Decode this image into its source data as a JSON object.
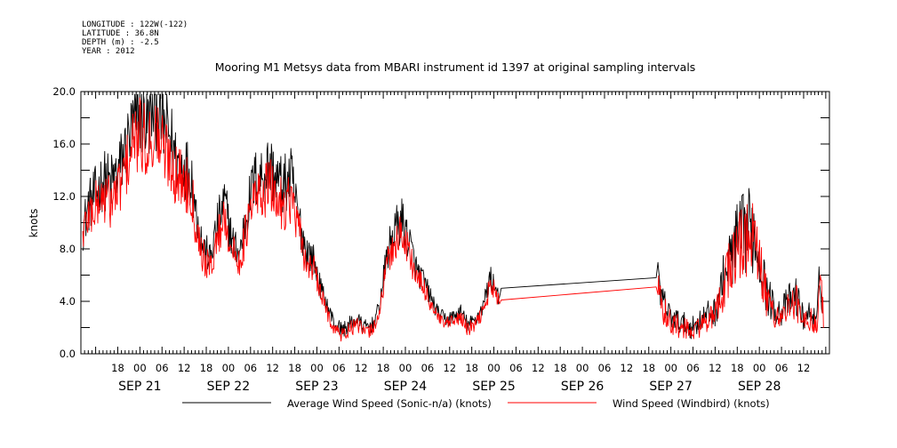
{
  "header": {
    "longitude": "LONGITUDE : 122W(-122)",
    "latitude": "LATITUDE : 36.8N",
    "depth": "DEPTH (m) : -2.5",
    "year": "YEAR : 2012"
  },
  "chart_data": {
    "type": "line",
    "title": "Mooring M1 Metsys data from MBARI instrument id 1397 at original sampling intervals",
    "xlabel": "",
    "ylabel": "knots",
    "ylim": [
      0,
      20
    ],
    "yticks": [
      "0.0",
      "4.0",
      "8.0",
      "12.0",
      "16.0",
      "20.0"
    ],
    "x_unit": "hours since SEP 21 00:00 (2012)",
    "xlim": [
      -16,
      187
    ],
    "hour_ticks": [
      {
        "h": -6,
        "label": "18"
      },
      {
        "h": 0,
        "label": "00"
      },
      {
        "h": 6,
        "label": "06"
      },
      {
        "h": 12,
        "label": "12"
      },
      {
        "h": 18,
        "label": "18"
      },
      {
        "h": 24,
        "label": "00"
      },
      {
        "h": 30,
        "label": "06"
      },
      {
        "h": 36,
        "label": "12"
      },
      {
        "h": 42,
        "label": "18"
      },
      {
        "h": 48,
        "label": "00"
      },
      {
        "h": 54,
        "label": "06"
      },
      {
        "h": 60,
        "label": "12"
      },
      {
        "h": 66,
        "label": "18"
      },
      {
        "h": 72,
        "label": "00"
      },
      {
        "h": 78,
        "label": "06"
      },
      {
        "h": 84,
        "label": "12"
      },
      {
        "h": 90,
        "label": "18"
      },
      {
        "h": 96,
        "label": "00"
      },
      {
        "h": 102,
        "label": "06"
      },
      {
        "h": 108,
        "label": "12"
      },
      {
        "h": 114,
        "label": "18"
      },
      {
        "h": 120,
        "label": "00"
      },
      {
        "h": 126,
        "label": "06"
      },
      {
        "h": 132,
        "label": "12"
      },
      {
        "h": 138,
        "label": "18"
      },
      {
        "h": 144,
        "label": "00"
      },
      {
        "h": 150,
        "label": "06"
      },
      {
        "h": 156,
        "label": "12"
      },
      {
        "h": 162,
        "label": "18"
      },
      {
        "h": 168,
        "label": "00"
      },
      {
        "h": 174,
        "label": "06"
      },
      {
        "h": 180,
        "label": "12"
      }
    ],
    "day_labels": [
      {
        "h": 0,
        "label": "SEP 21"
      },
      {
        "h": 24,
        "label": "SEP 22"
      },
      {
        "h": 48,
        "label": "SEP 23"
      },
      {
        "h": 72,
        "label": "SEP 24"
      },
      {
        "h": 96,
        "label": "SEP 25"
      },
      {
        "h": 120,
        "label": "SEP 26"
      },
      {
        "h": 144,
        "label": "SEP 27"
      },
      {
        "h": 168,
        "label": "SEP 28"
      }
    ],
    "series": [
      {
        "name": "Average Wind Speed (Sonic-n/a) (knots)",
        "color": "#000000",
        "points": [
          [
            -15.5,
            9.5
          ],
          [
            -14,
            11.2
          ],
          [
            -12,
            12.2
          ],
          [
            -10,
            13.3
          ],
          [
            -8,
            13.0
          ],
          [
            -6,
            13.8
          ],
          [
            -4,
            15.5
          ],
          [
            -2,
            17.2
          ],
          [
            0,
            18.3
          ],
          [
            2,
            17.5
          ],
          [
            4,
            19.2
          ],
          [
            6,
            17.4
          ],
          [
            8,
            16.8
          ],
          [
            10,
            14.6
          ],
          [
            12,
            14.4
          ],
          [
            14,
            13.6
          ],
          [
            15,
            11.2
          ],
          [
            17,
            8.3
          ],
          [
            19,
            7.2
          ],
          [
            21,
            9.8
          ],
          [
            23,
            11.6
          ],
          [
            25,
            8.6
          ],
          [
            27,
            7.6
          ],
          [
            29,
            10.8
          ],
          [
            31,
            13.2
          ],
          [
            33,
            13.6
          ],
          [
            35,
            14.4
          ],
          [
            37,
            13.3
          ],
          [
            39,
            12.8
          ],
          [
            41,
            13.5
          ],
          [
            43,
            10.4
          ],
          [
            45,
            8.0
          ],
          [
            47,
            7.2
          ],
          [
            49,
            5.0
          ],
          [
            51,
            3.5
          ],
          [
            53,
            2.2
          ],
          [
            55,
            1.8
          ],
          [
            57,
            2.3
          ],
          [
            59,
            2.6
          ],
          [
            61,
            2.0
          ],
          [
            63,
            2.2
          ],
          [
            65,
            3.6
          ],
          [
            67,
            7.5
          ],
          [
            69,
            9.4
          ],
          [
            71,
            10.2
          ],
          [
            73,
            8.6
          ],
          [
            75,
            6.4
          ],
          [
            77,
            5.5
          ],
          [
            79,
            4.2
          ],
          [
            81,
            3.0
          ],
          [
            83,
            2.6
          ],
          [
            85,
            2.8
          ],
          [
            87,
            3.2
          ],
          [
            89,
            2.2
          ],
          [
            91,
            2.6
          ],
          [
            93,
            3.6
          ],
          [
            95,
            5.8
          ],
          [
            97,
            4.8
          ],
          [
            97.5,
            4.3
          ],
          [
            98,
            5.0
          ],
          [
            140,
            5.8
          ],
          [
            140.5,
            5.2
          ],
          [
            142,
            3.8
          ],
          [
            144,
            2.8
          ],
          [
            146,
            2.5
          ],
          [
            148,
            2.2
          ],
          [
            150,
            2.0
          ],
          [
            152,
            2.6
          ],
          [
            154,
            3.0
          ],
          [
            156,
            3.2
          ],
          [
            158,
            5.4
          ],
          [
            160,
            7.2
          ],
          [
            162,
            8.6
          ],
          [
            164,
            9.2
          ],
          [
            166,
            9.6
          ],
          [
            168,
            7.4
          ],
          [
            170,
            4.6
          ],
          [
            172,
            3.5
          ],
          [
            174,
            3.2
          ],
          [
            176,
            4.0
          ],
          [
            178,
            4.4
          ],
          [
            180,
            2.6
          ],
          [
            182,
            3.2
          ],
          [
            183.5,
            2.2
          ],
          [
            184.5,
            6.2
          ],
          [
            185.5,
            3.0
          ]
        ]
      },
      {
        "name": "Wind Speed (Windbird) (knots)",
        "color": "#ff0000",
        "points": [
          [
            -15.5,
            9.2
          ],
          [
            -14,
            10.6
          ],
          [
            -12,
            11.2
          ],
          [
            -10,
            12.0
          ],
          [
            -8,
            11.6
          ],
          [
            -6,
            12.4
          ],
          [
            -4,
            14.0
          ],
          [
            -2,
            15.8
          ],
          [
            0,
            16.6
          ],
          [
            2,
            16.0
          ],
          [
            4,
            17.0
          ],
          [
            6,
            15.8
          ],
          [
            8,
            15.0
          ],
          [
            10,
            13.6
          ],
          [
            12,
            13.2
          ],
          [
            14,
            12.6
          ],
          [
            15,
            10.2
          ],
          [
            17,
            7.6
          ],
          [
            19,
            6.4
          ],
          [
            21,
            8.8
          ],
          [
            23,
            10.6
          ],
          [
            25,
            7.8
          ],
          [
            27,
            7.0
          ],
          [
            29,
            9.6
          ],
          [
            31,
            11.8
          ],
          [
            33,
            12.2
          ],
          [
            35,
            12.8
          ],
          [
            37,
            11.8
          ],
          [
            39,
            11.4
          ],
          [
            41,
            12.0
          ],
          [
            43,
            9.4
          ],
          [
            45,
            7.0
          ],
          [
            47,
            6.6
          ],
          [
            49,
            4.6
          ],
          [
            51,
            3.0
          ],
          [
            53,
            1.8
          ],
          [
            55,
            1.4
          ],
          [
            57,
            1.9
          ],
          [
            59,
            2.2
          ],
          [
            61,
            1.6
          ],
          [
            63,
            1.8
          ],
          [
            65,
            3.2
          ],
          [
            67,
            6.8
          ],
          [
            69,
            8.4
          ],
          [
            71,
            9.2
          ],
          [
            73,
            7.8
          ],
          [
            75,
            5.8
          ],
          [
            77,
            5.0
          ],
          [
            79,
            3.8
          ],
          [
            81,
            2.6
          ],
          [
            83,
            2.2
          ],
          [
            85,
            2.4
          ],
          [
            87,
            2.8
          ],
          [
            89,
            1.8
          ],
          [
            91,
            2.2
          ],
          [
            93,
            3.2
          ],
          [
            95,
            5.2
          ],
          [
            97,
            4.4
          ],
          [
            97.5,
            3.8
          ],
          [
            98,
            4.1
          ],
          [
            140,
            5.1
          ],
          [
            140.5,
            4.6
          ],
          [
            142,
            3.4
          ],
          [
            144,
            2.4
          ],
          [
            146,
            2.1
          ],
          [
            148,
            1.8
          ],
          [
            150,
            1.6
          ],
          [
            152,
            2.2
          ],
          [
            154,
            2.6
          ],
          [
            156,
            2.8
          ],
          [
            158,
            4.8
          ],
          [
            160,
            6.6
          ],
          [
            162,
            8.0
          ],
          [
            164,
            8.6
          ],
          [
            166,
            9.0
          ],
          [
            168,
            6.8
          ],
          [
            170,
            4.2
          ],
          [
            172,
            3.0
          ],
          [
            174,
            2.8
          ],
          [
            176,
            3.6
          ],
          [
            178,
            4.0
          ],
          [
            180,
            2.2
          ],
          [
            182,
            2.8
          ],
          [
            183.5,
            1.8
          ],
          [
            184.5,
            5.6
          ],
          [
            185.5,
            2.6
          ]
        ]
      }
    ],
    "gap": {
      "start": 98,
      "end": 140
    },
    "legend": [
      {
        "label": "Average Wind Speed (Sonic-n/a) (knots)",
        "color": "#000000"
      },
      {
        "label": "Wind Speed (Windbird) (knots)",
        "color": "#ff0000"
      }
    ],
    "legend_position": "bottom",
    "grid": false
  }
}
